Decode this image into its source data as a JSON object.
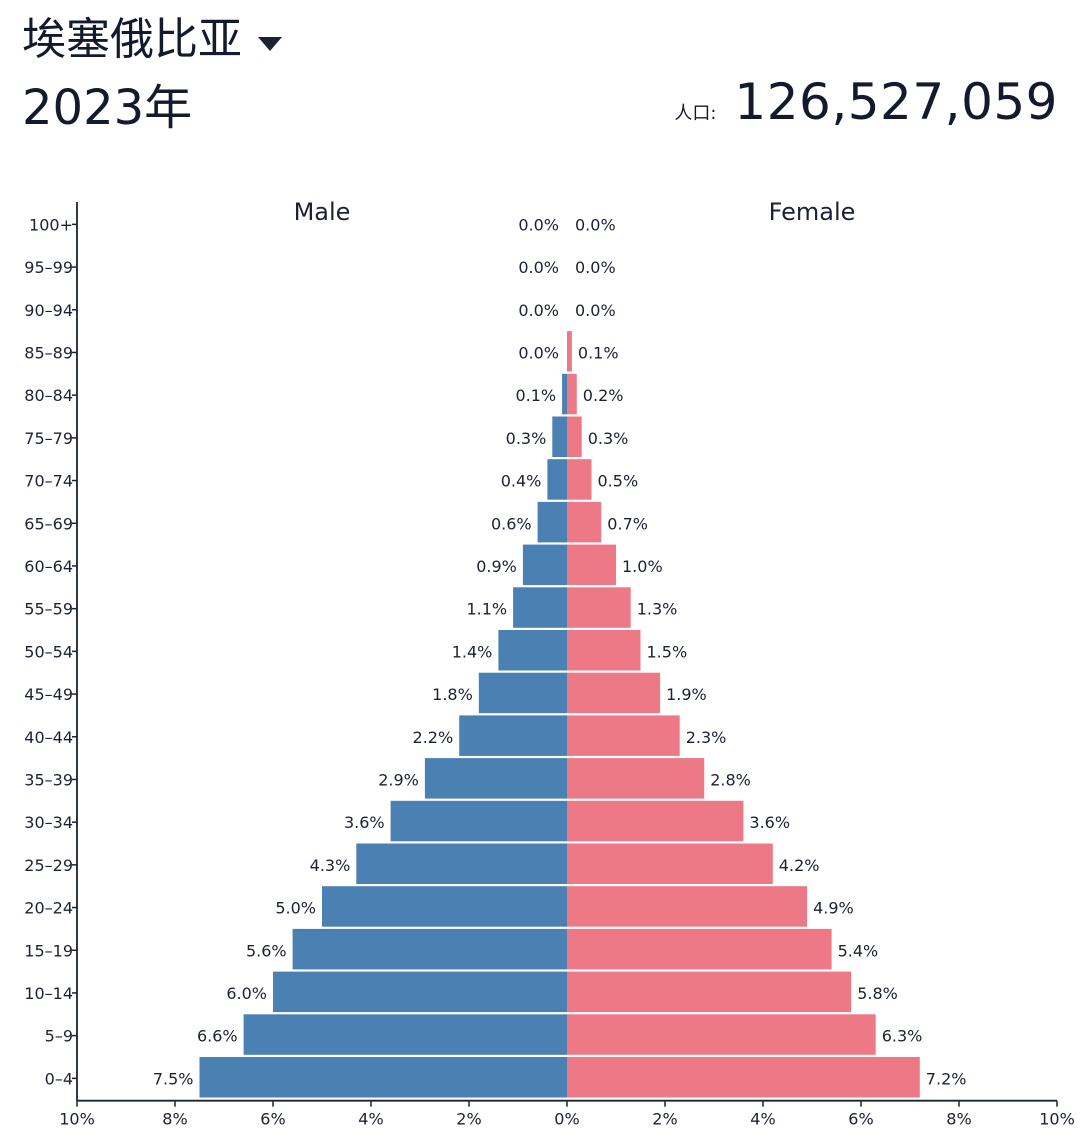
{
  "header": {
    "country": "埃塞俄比亚",
    "year_title": "2023年",
    "population_label": "人口:",
    "population_value": "126,527,059"
  },
  "colors": {
    "male": "#4a80b2",
    "female": "#ee7986",
    "axis": "#1c2233"
  },
  "chart_data": {
    "type": "bar",
    "orientation": "horizontal-population-pyramid",
    "categories": [
      "0–4",
      "5–9",
      "10–14",
      "15–19",
      "20–24",
      "25–29",
      "30–34",
      "35–39",
      "40–44",
      "45–49",
      "50–54",
      "55–59",
      "60–64",
      "65–69",
      "70–74",
      "75–79",
      "80–84",
      "85–89",
      "90–94",
      "95–99",
      "100+"
    ],
    "series": [
      {
        "name": "Male",
        "values": [
          7.5,
          6.6,
          6.0,
          5.6,
          5.0,
          4.3,
          3.6,
          2.9,
          2.2,
          1.8,
          1.4,
          1.1,
          0.9,
          0.6,
          0.4,
          0.3,
          0.1,
          0.0,
          0.0,
          0.0,
          0.0
        ],
        "labels": [
          "7.5%",
          "6.6%",
          "6.0%",
          "5.6%",
          "5.0%",
          "4.3%",
          "3.6%",
          "2.9%",
          "2.2%",
          "1.8%",
          "1.4%",
          "1.1%",
          "0.9%",
          "0.6%",
          "0.4%",
          "0.3%",
          "0.1%",
          "0.0%",
          "0.0%",
          "0.0%",
          "0.0%"
        ]
      },
      {
        "name": "Female",
        "values": [
          7.2,
          6.3,
          5.8,
          5.4,
          4.9,
          4.2,
          3.6,
          2.8,
          2.3,
          1.9,
          1.5,
          1.3,
          1.0,
          0.7,
          0.5,
          0.3,
          0.2,
          0.1,
          0.0,
          0.0,
          0.0
        ],
        "labels": [
          "7.2%",
          "6.3%",
          "5.8%",
          "5.4%",
          "4.9%",
          "4.2%",
          "3.6%",
          "2.8%",
          "2.3%",
          "1.9%",
          "1.5%",
          "1.3%",
          "1.0%",
          "0.7%",
          "0.5%",
          "0.3%",
          "0.2%",
          "0.1%",
          "0.0%",
          "0.0%",
          "0.0%"
        ]
      }
    ],
    "xlim": [
      -10,
      10
    ],
    "xticks": [
      -10,
      -8,
      -6,
      -4,
      -2,
      0,
      2,
      4,
      6,
      8,
      10
    ],
    "xtick_labels": [
      "10%",
      "8%",
      "6%",
      "4%",
      "2%",
      "0%",
      "2%",
      "4%",
      "6%",
      "8%",
      "10%"
    ],
    "xlabel": "",
    "ylabel": "",
    "grid": false
  }
}
